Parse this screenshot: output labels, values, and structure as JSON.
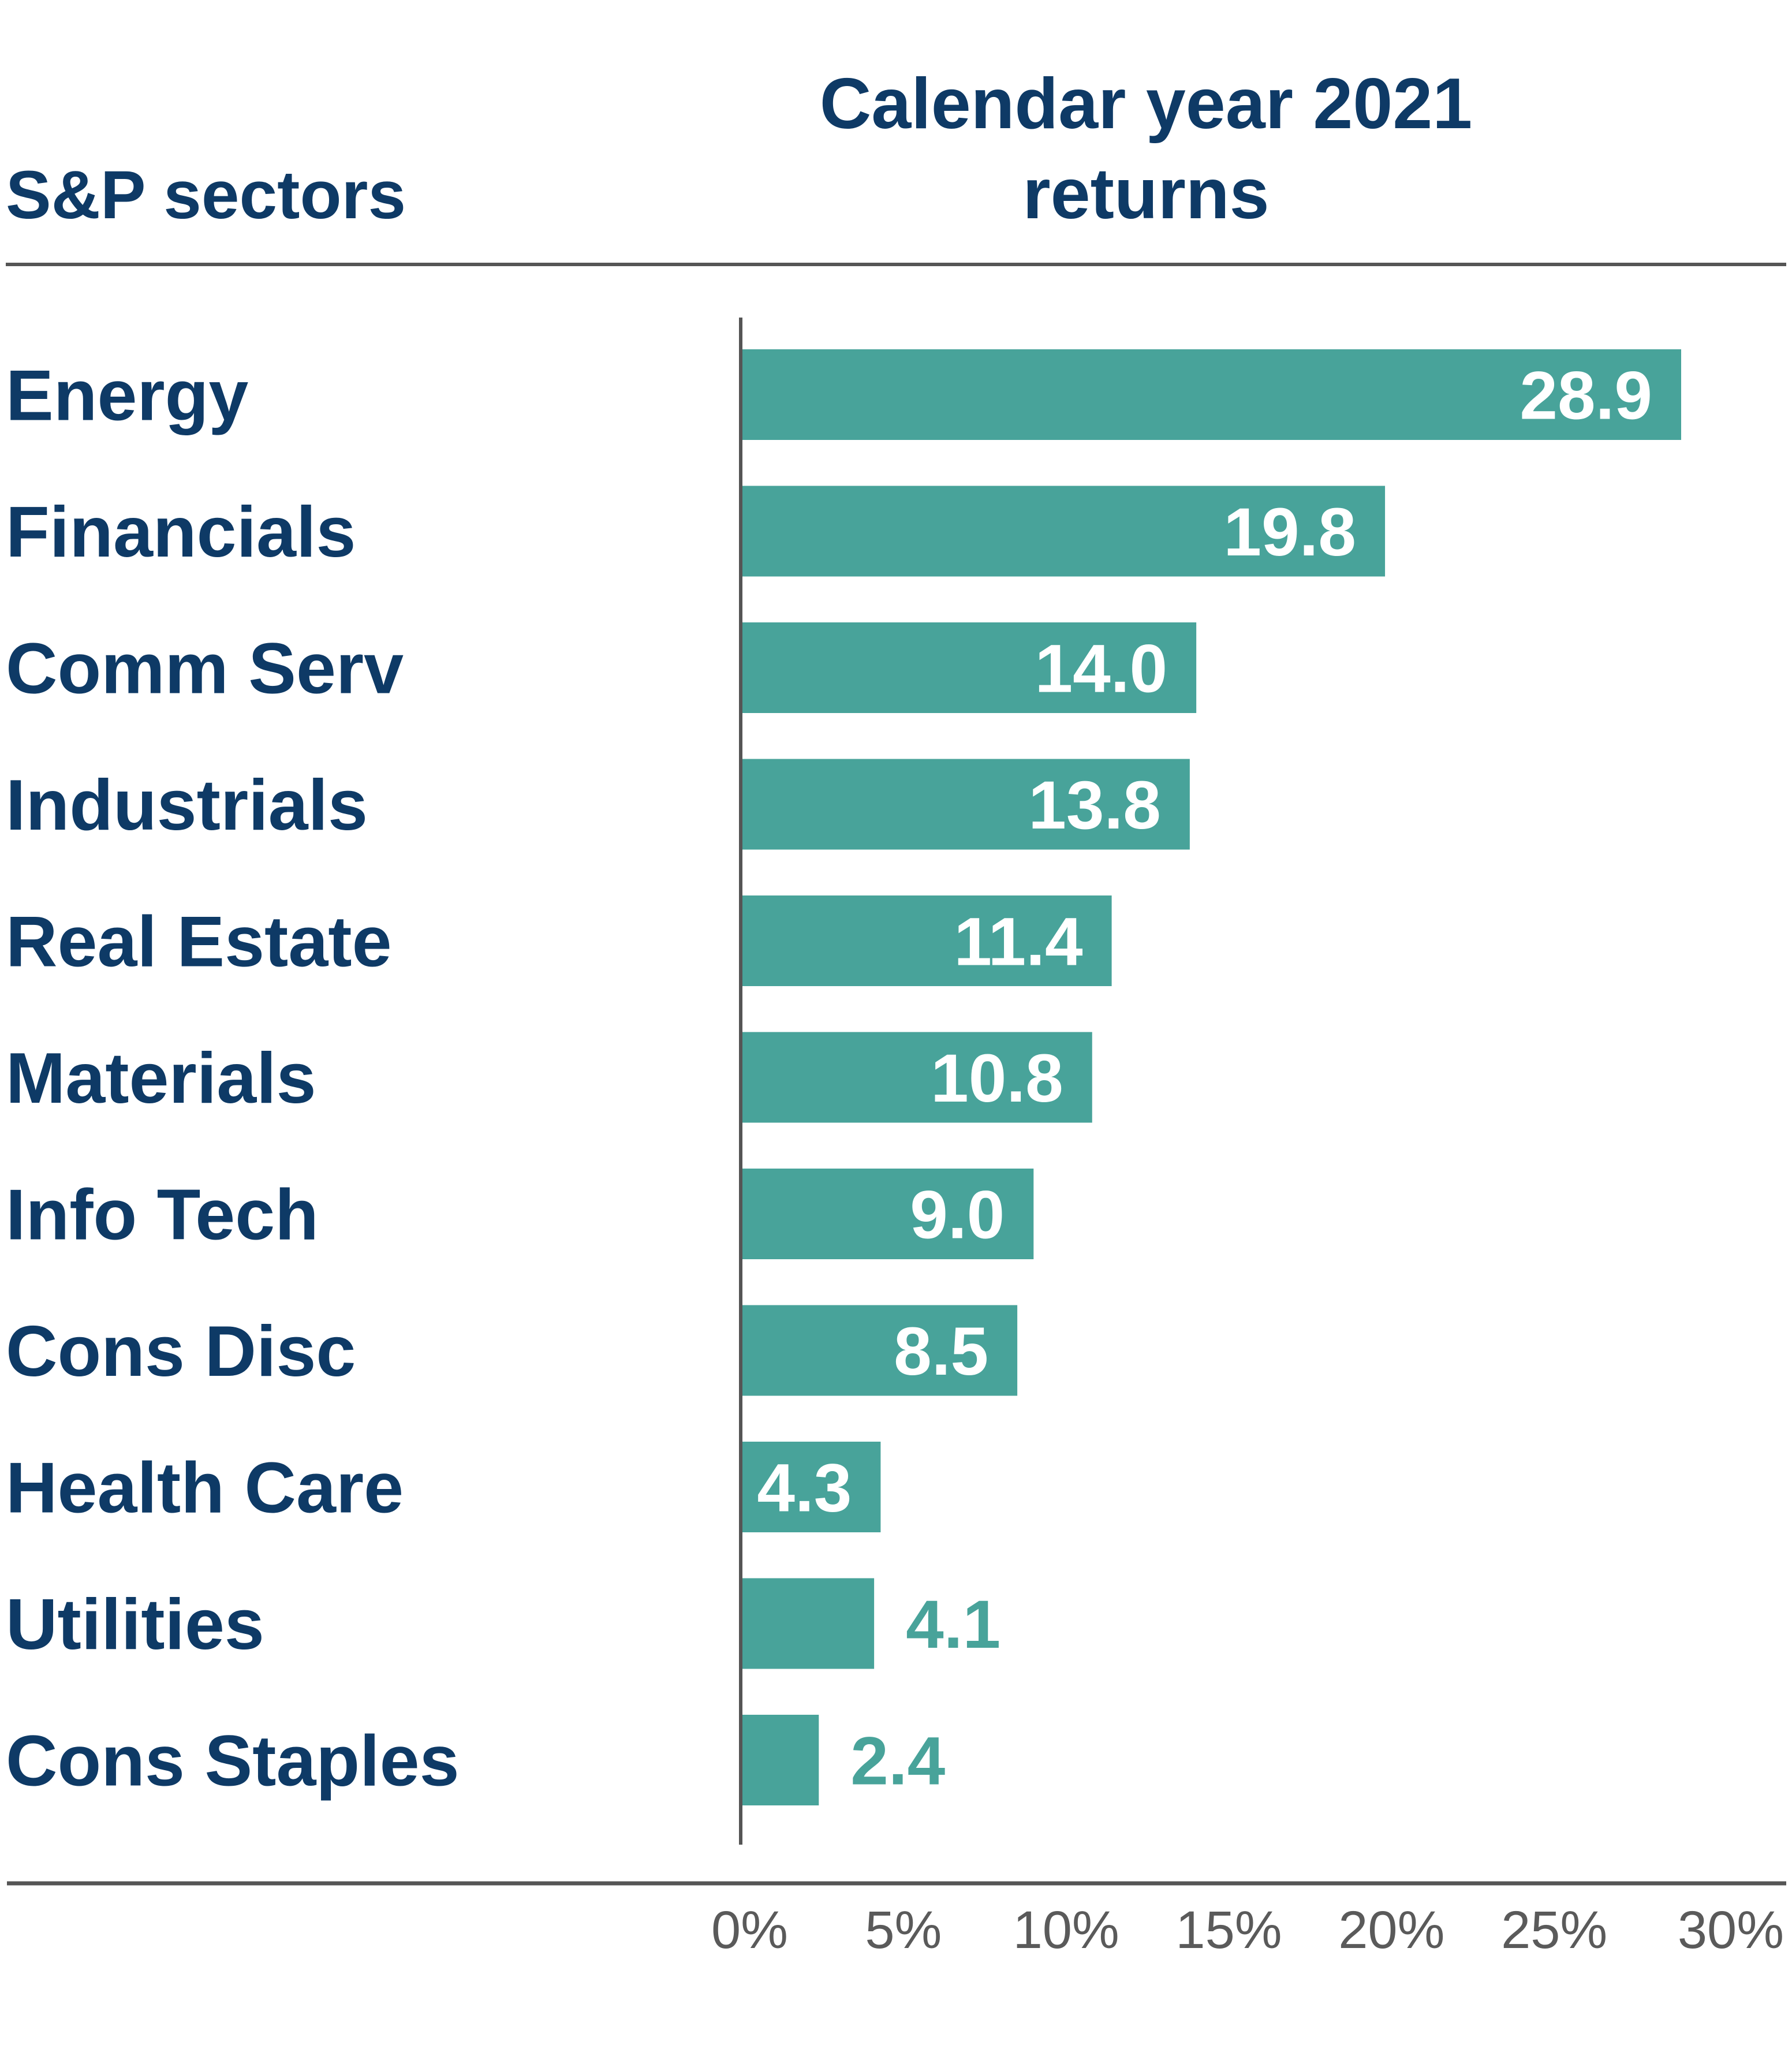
{
  "chart_data": {
    "type": "bar",
    "orientation": "horizontal",
    "title": "Calendar year 2021 returns",
    "title_lines": [
      "Calendar year 2021",
      "returns"
    ],
    "category_header": "S&P sectors",
    "categories": [
      "Energy",
      "Financials",
      "Comm Serv",
      "Industrials",
      "Real Estate",
      "Materials",
      "Info Tech",
      "Cons Disc",
      "Health Care",
      "Utilities",
      "Cons Staples"
    ],
    "values": [
      28.9,
      19.8,
      14.0,
      13.8,
      11.4,
      10.8,
      9.0,
      8.5,
      4.3,
      4.1,
      2.4
    ],
    "value_labels": [
      "28.9",
      "19.8",
      "14.0",
      "13.8",
      "11.4",
      "10.8",
      "9.0",
      "8.5",
      "4.3",
      "4.1",
      "2.4"
    ],
    "xlim": [
      0,
      30
    ],
    "xticks": [
      0,
      5,
      10,
      15,
      20,
      25,
      30
    ],
    "xtick_labels": [
      "0%",
      "5%",
      "10%",
      "15%",
      "20%",
      "25%",
      "30%"
    ],
    "xlabel": "",
    "ylabel": "",
    "grid": false,
    "legend": "none",
    "colors": {
      "bar": "#48a39a",
      "label_text": "#0e3a66",
      "axis": "#555555",
      "tick_text": "#5a5a5a",
      "value_inside": "#ffffff",
      "value_outside": "#48a39a"
    }
  }
}
